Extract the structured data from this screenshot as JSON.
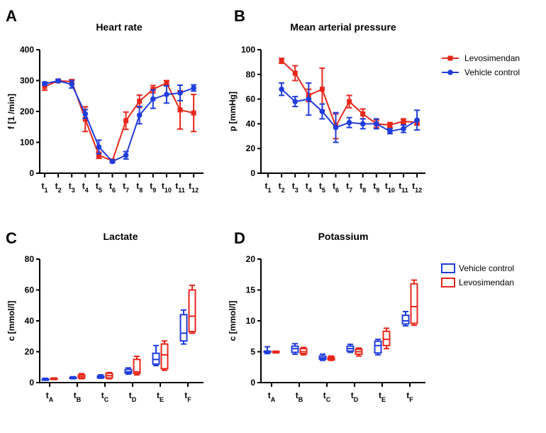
{
  "chart_data": [
    {
      "type": "line",
      "panel": "A",
      "title": "Heart rate",
      "ylabel": "f [1 /min]",
      "ylim": [
        0,
        400
      ],
      "yticks": [
        "0",
        "100",
        "200",
        "300",
        "400"
      ],
      "x_ticks": [
        {
          "base": "t",
          "sub": "1"
        },
        {
          "base": "t",
          "sub": "2"
        },
        {
          "base": "t",
          "sub": "3"
        },
        {
          "base": "t",
          "sub": "4"
        },
        {
          "base": "t",
          "sub": "5"
        },
        {
          "base": "t",
          "sub": "6"
        },
        {
          "base": "t",
          "sub": "7"
        },
        {
          "base": "t",
          "sub": "8"
        },
        {
          "base": "t",
          "sub": "9"
        },
        {
          "base": "t",
          "sub": "10"
        },
        {
          "base": "t",
          "sub": "11"
        },
        {
          "base": "t",
          "sub": "12"
        }
      ],
      "series": [
        {
          "name": "Levosimendan",
          "color": "#e8271b",
          "marker": "square",
          "values": [
            281,
            299,
            297,
            175,
            58,
            40,
            170,
            233,
            272,
            292,
            205,
            195
          ],
          "err": [
            12,
            5,
            6,
            40,
            10,
            4,
            28,
            20,
            12,
            8,
            62,
            60
          ]
        },
        {
          "name": "Vehicle control",
          "color": "#1f3ddc",
          "marker": "circle",
          "values": [
            290,
            299,
            288,
            192,
            85,
            38,
            58,
            188,
            240,
            255,
            260,
            276
          ],
          "err": [
            5,
            4,
            12,
            14,
            22,
            4,
            12,
            28,
            30,
            28,
            25,
            10
          ]
        }
      ]
    },
    {
      "type": "line",
      "panel": "B",
      "title": "Mean arterial pressure",
      "ylabel": "p [mmHg]",
      "ylim": [
        0,
        100
      ],
      "yticks": [
        "0",
        "20",
        "40",
        "60",
        "80",
        "100"
      ],
      "x_ticks": [
        {
          "base": "t",
          "sub": "1"
        },
        {
          "base": "t",
          "sub": "2"
        },
        {
          "base": "t",
          "sub": "3"
        },
        {
          "base": "t",
          "sub": "4"
        },
        {
          "base": "t",
          "sub": "5"
        },
        {
          "base": "t",
          "sub": "6"
        },
        {
          "base": "t",
          "sub": "7"
        },
        {
          "base": "t",
          "sub": "8"
        },
        {
          "base": "t",
          "sub": "9"
        },
        {
          "base": "t",
          "sub": "10"
        },
        {
          "base": "t",
          "sub": "11"
        },
        {
          "base": "t",
          "sub": "12"
        }
      ],
      "legend": [
        {
          "label": "Levosimendan",
          "color": "#e8271b",
          "marker": "square"
        },
        {
          "label": "Vehicle control",
          "color": "#1f3ddc",
          "marker": "circle"
        }
      ],
      "series": [
        {
          "name": "Levosimendan",
          "color": "#e8271b",
          "marker": "square",
          "values": [
            null,
            91,
            81,
            63,
            68,
            38,
            58,
            48,
            40,
            39,
            42,
            41
          ],
          "err": [
            null,
            2,
            6,
            5,
            17,
            10,
            5,
            4,
            3,
            2,
            2,
            2
          ]
        },
        {
          "name": "Vehicle control",
          "color": "#1f3ddc",
          "marker": "circle",
          "values": [
            null,
            68,
            58,
            60,
            50,
            37,
            41,
            40,
            40,
            34,
            36,
            43
          ],
          "err": [
            null,
            5,
            4,
            13,
            6,
            12,
            4,
            4,
            4,
            2,
            3,
            8
          ]
        }
      ]
    },
    {
      "type": "box",
      "panel": "C",
      "title": "Lactate",
      "ylabel": "c [mmol/l]",
      "ylim": [
        0,
        80
      ],
      "yticks": [
        "0",
        "20",
        "40",
        "60",
        "80"
      ],
      "x_ticks": [
        {
          "base": "t",
          "sub": "A"
        },
        {
          "base": "t",
          "sub": "B"
        },
        {
          "base": "t",
          "sub": "C"
        },
        {
          "base": "t",
          "sub": "D"
        },
        {
          "base": "t",
          "sub": "E"
        },
        {
          "base": "t",
          "sub": "F"
        }
      ],
      "legend": [
        {
          "label": "Vehicle control",
          "color": "#1f3ddc"
        },
        {
          "label": "Levosimendan",
          "color": "#e8271b"
        }
      ],
      "series": [
        {
          "name": "Vehicle control",
          "color": "#1f3ddc",
          "boxes": [
            {
              "min": 1.5,
              "q1": 1.8,
              "med": 2.0,
              "q3": 2.3,
              "max": 2.8
            },
            {
              "min": 2.5,
              "q1": 2.8,
              "med": 3.0,
              "q3": 3.4,
              "max": 3.8
            },
            {
              "min": 2.8,
              "q1": 3.2,
              "med": 3.6,
              "q3": 4.2,
              "max": 5.0
            },
            {
              "min": 5.5,
              "q1": 6.2,
              "med": 7.0,
              "q3": 8.5,
              "max": 9.5
            },
            {
              "min": 11,
              "q1": 12,
              "med": 15,
              "q3": 19,
              "max": 24
            },
            {
              "min": 25,
              "q1": 27,
              "med": 32,
              "q3": 44,
              "max": 47
            }
          ]
        },
        {
          "name": "Levosimendan",
          "color": "#e8271b",
          "boxes": [
            {
              "min": 2.0,
              "q1": 2.2,
              "med": 2.5,
              "q3": 2.8,
              "max": 3.0
            },
            {
              "min": 2.5,
              "q1": 3.0,
              "med": 4.0,
              "q3": 5.0,
              "max": 5.8
            },
            {
              "min": 2.5,
              "q1": 3.0,
              "med": 4.5,
              "q3": 6.0,
              "max": 6.5
            },
            {
              "min": 5.0,
              "q1": 6.0,
              "med": 7.0,
              "q3": 15.0,
              "max": 17.0
            },
            {
              "min": 8.0,
              "q1": 9.0,
              "med": 18.0,
              "q3": 25.0,
              "max": 27.0
            },
            {
              "min": 32,
              "q1": 33,
              "med": 43,
              "q3": 60,
              "max": 63
            }
          ]
        }
      ]
    },
    {
      "type": "box",
      "panel": "D",
      "title": "Potassium",
      "ylabel": "c [mmol/l]",
      "ylim": [
        0,
        20
      ],
      "yticks": [
        "0",
        "5",
        "10",
        "15",
        "20"
      ],
      "x_ticks": [
        {
          "base": "t",
          "sub": "A"
        },
        {
          "base": "t",
          "sub": "B"
        },
        {
          "base": "t",
          "sub": "C"
        },
        {
          "base": "t",
          "sub": "D"
        },
        {
          "base": "t",
          "sub": "E"
        },
        {
          "base": "t",
          "sub": "F"
        }
      ],
      "series": [
        {
          "name": "Vehicle control",
          "color": "#1f3ddc",
          "boxes": [
            {
              "min": 4.7,
              "q1": 4.9,
              "med": 5.0,
              "q3": 5.1,
              "max": 5.8
            },
            {
              "min": 4.6,
              "q1": 4.9,
              "med": 5.5,
              "q3": 5.9,
              "max": 6.3
            },
            {
              "min": 3.6,
              "q1": 3.8,
              "med": 4.0,
              "q3": 4.3,
              "max": 4.6
            },
            {
              "min": 4.9,
              "q1": 5.1,
              "med": 5.5,
              "q3": 5.9,
              "max": 6.2
            },
            {
              "min": 4.5,
              "q1": 4.8,
              "med": 6.0,
              "q3": 6.7,
              "max": 7.0
            },
            {
              "min": 9.2,
              "q1": 9.5,
              "med": 10.0,
              "q3": 10.9,
              "max": 11.5
            }
          ]
        },
        {
          "name": "Levosimendan",
          "color": "#e8271b",
          "boxes": [
            {
              "min": 4.8,
              "q1": 4.9,
              "med": 5.0,
              "q3": 5.05,
              "max": 5.1
            },
            {
              "min": 4.5,
              "q1": 4.7,
              "med": 5.0,
              "q3": 5.5,
              "max": 5.7
            },
            {
              "min": 3.6,
              "q1": 3.7,
              "med": 3.9,
              "q3": 4.1,
              "max": 4.3
            },
            {
              "min": 4.3,
              "q1": 4.6,
              "med": 5.0,
              "q3": 5.4,
              "max": 5.6
            },
            {
              "min": 5.5,
              "q1": 6.0,
              "med": 7.0,
              "q3": 8.3,
              "max": 8.8
            },
            {
              "min": 9.3,
              "q1": 9.6,
              "med": 12.3,
              "q3": 16.0,
              "max": 16.6
            }
          ]
        }
      ]
    }
  ]
}
